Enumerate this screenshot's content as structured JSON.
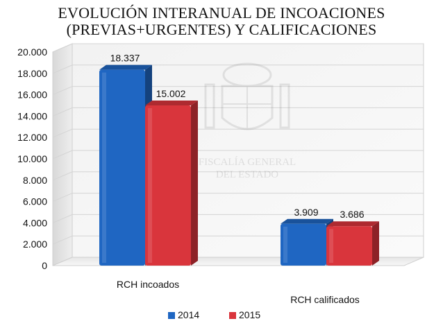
{
  "chart_data": {
    "type": "bar",
    "title_lines": [
      "EVOLUCIÓN INTERANUAL DE INCOACIONES",
      "(PREVIAS+URGENTES) Y CALIFICACIONES"
    ],
    "categories": [
      "RCH incoados",
      "RCH calificados"
    ],
    "series": [
      {
        "name": "2014",
        "values": [
          18337,
          3909
        ],
        "labels": [
          "18.337",
          "3.909"
        ],
        "color": "#1f66c2"
      },
      {
        "name": "2015",
        "values": [
          15002,
          3686
        ],
        "labels": [
          "15.002",
          "3.686"
        ],
        "color": "#d9353c"
      }
    ],
    "ylim": [
      0,
      20000
    ],
    "yticks": [
      0,
      2000,
      4000,
      6000,
      8000,
      10000,
      12000,
      14000,
      16000,
      18000,
      20000
    ],
    "ytick_labels": [
      "0",
      "2.000",
      "4.000",
      "6.000",
      "8.000",
      "10.000",
      "12.000",
      "14.000",
      "16.000",
      "18.000",
      "20.000"
    ],
    "grid": true,
    "legend_position": "bottom",
    "watermark_text": [
      "FISCALÍA GENERAL",
      "DEL ESTADO"
    ]
  }
}
